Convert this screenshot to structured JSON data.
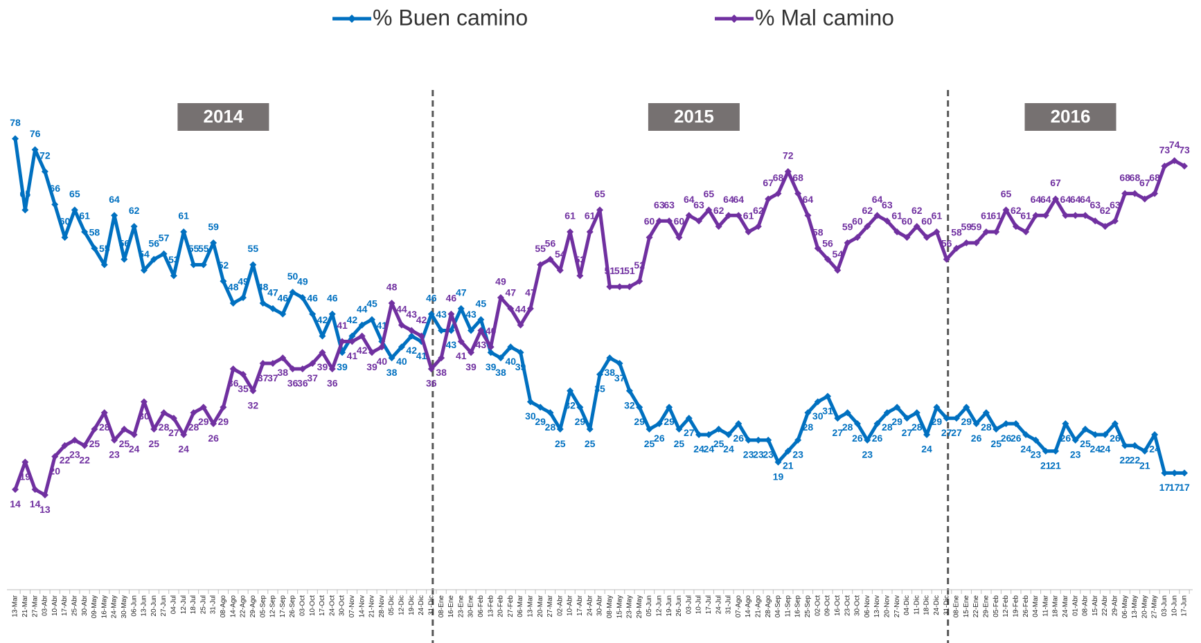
{
  "chart_data": {
    "type": "line",
    "annotations": [
      "2014",
      "2015",
      "2016"
    ],
    "legend": "top",
    "ylim": [
      0,
      85
    ],
    "x": [
      "13-Mar",
      "21-Mar",
      "27-Mar",
      "03-Abr",
      "10-Abr",
      "17-Abr",
      "25-Abr",
      "30-Abr",
      "09-May",
      "16-May",
      "24-May",
      "30-May",
      "06-Jun",
      "13-Jun",
      "20-Jun",
      "27-Jun",
      "04-Jul",
      "12-Jul",
      "18-Jul",
      "25-Jul",
      "31-Jul",
      "08-Ago",
      "14-Ago",
      "22-Ago",
      "29-Ago",
      "05-Sep",
      "12-Sep",
      "17-Sep",
      "26-Sep",
      "03-Oct",
      "10-Oct",
      "17-Oct",
      "24-Oct",
      "30-Oct",
      "07-Nov",
      "14-Nov",
      "21-Nov",
      "28-Nov",
      "05-Dic",
      "12-Dic",
      "19-Dic",
      "24-Dic",
      "31-Dic",
      "08-Ene",
      "16-Ene",
      "23-Ene",
      "30-Ene",
      "06-Feb",
      "13-Feb",
      "20-Feb",
      "27-Feb",
      "06-Mar",
      "13-Mar",
      "20-Mar",
      "27-Mar",
      "02-Abr",
      "10-Abr",
      "17-Abr",
      "24-Abr",
      "30-Abr",
      "08-May",
      "15-May",
      "23-May",
      "29-May",
      "05-Jun",
      "12-Jun",
      "19-Jun",
      "26-Jun",
      "03-Jul",
      "10-Jul",
      "17-Jul",
      "24-Jul",
      "31-Jul",
      "07-Ago",
      "14-Ago",
      "21-Ago",
      "28-Ago",
      "04-Sep",
      "11-Sep",
      "16-Sep",
      "25-Sep",
      "02-Oct",
      "09-Oct",
      "16-Oct",
      "23-Oct",
      "30-Oct",
      "06-Nov",
      "13-Nov",
      "20-Nov",
      "27-Nov",
      "04-Dic",
      "11-Dic",
      "18-Dic",
      "24-Dic",
      "31-Dic",
      "08-Ene",
      "15-Ene",
      "22-Ene",
      "29-Ene",
      "05-Feb",
      "12-Feb",
      "19-Feb",
      "26-Feb",
      "04-Mar",
      "11-Mar",
      "18-Mar",
      "24-Mar",
      "01-Abr",
      "08-Abr",
      "15-Abr",
      "22-Abr",
      "29-Abr",
      "06-May",
      "13-May",
      "20-May",
      "27-May",
      "03-Jun",
      "10-Jun",
      "17-Jun"
    ],
    "series": [
      {
        "name": "% Buen camino",
        "color": "#0070c0",
        "values": [
          78,
          65,
          76,
          72,
          66,
          60,
          65,
          61,
          58,
          55,
          64,
          56,
          62,
          54,
          56,
          57,
          53,
          61,
          55,
          55,
          59,
          52,
          48,
          49,
          55,
          48,
          47,
          46,
          50,
          49,
          46,
          42,
          46,
          39,
          42,
          44,
          45,
          41,
          38,
          40,
          42,
          41,
          46,
          43,
          43,
          47,
          43,
          45,
          39,
          38,
          40,
          39,
          30,
          29,
          28,
          25,
          32,
          29,
          25,
          35,
          38,
          37,
          32,
          29,
          25,
          26,
          29,
          25,
          27,
          24,
          24,
          25,
          24,
          26,
          23,
          23,
          23,
          19,
          21,
          23,
          28,
          30,
          31,
          27,
          28,
          26,
          23,
          26,
          28,
          29,
          27,
          28,
          24,
          29,
          27,
          27,
          29,
          26,
          28,
          25,
          26,
          26,
          24,
          23,
          21,
          21,
          26,
          23,
          25,
          24,
          24,
          26,
          22,
          22,
          21,
          24,
          17,
          17,
          17
        ]
      },
      {
        "name": "% Mal camino",
        "color": "#7030a0",
        "values": [
          14,
          19,
          14,
          13,
          20,
          22,
          23,
          22,
          25,
          28,
          23,
          25,
          24,
          30,
          25,
          28,
          27,
          24,
          28,
          29,
          26,
          29,
          36,
          35,
          32,
          37,
          37,
          38,
          36,
          36,
          37,
          39,
          36,
          41,
          41,
          42,
          39,
          40,
          48,
          44,
          43,
          42,
          36,
          38,
          46,
          41,
          39,
          43,
          40,
          49,
          47,
          44,
          47,
          55,
          56,
          54,
          61,
          53,
          61,
          65,
          51,
          51,
          51,
          52,
          60,
          63,
          63,
          60,
          64,
          63,
          65,
          62,
          64,
          64,
          61,
          62,
          67,
          68,
          72,
          68,
          64,
          58,
          56,
          54,
          59,
          60,
          62,
          64,
          63,
          61,
          60,
          62,
          60,
          61,
          56,
          58,
          59,
          59,
          61,
          61,
          65,
          62,
          61,
          64,
          64,
          67,
          64,
          64,
          64,
          63,
          62,
          63,
          68,
          68,
          67,
          68,
          73,
          74,
          73
        ]
      }
    ]
  }
}
